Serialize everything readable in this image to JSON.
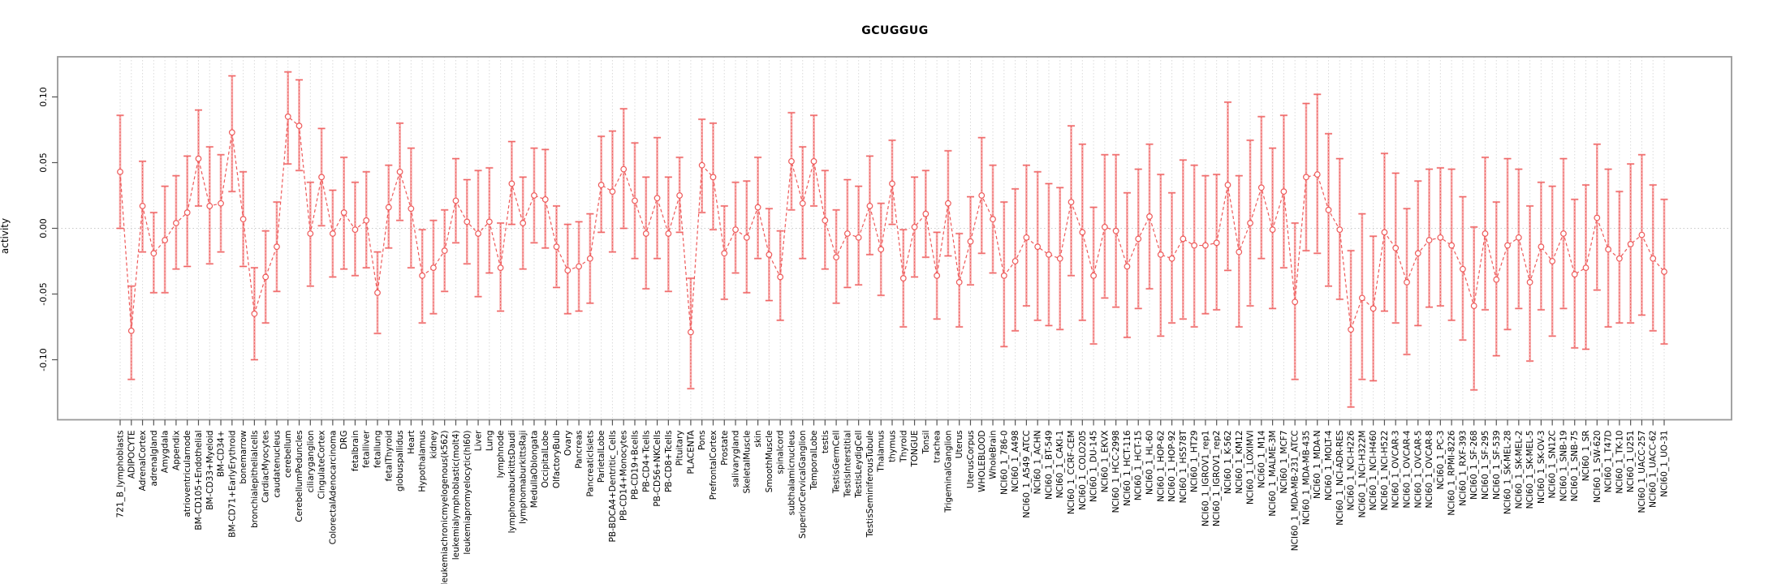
{
  "chart_data": {
    "type": "line",
    "title": "GCUGGUG",
    "ylabel": "activity",
    "xlabel": "",
    "ylim": [
      -0.143,
      0.131
    ],
    "grid": "vertical-dotted",
    "zero_line": true,
    "legend": "none",
    "marker": "open-circle",
    "line_style": "dashed",
    "error_bars": true,
    "yticks": [
      0.1,
      0.05,
      0.0,
      -0.05,
      -0.1
    ],
    "ytick_labels": [
      "0.10",
      "0.05",
      "0.00",
      "-0.05",
      "-0.10"
    ],
    "colors": {
      "series": "#ee5a5a",
      "error_bar": "#f6a9a9",
      "grid": "#dadada",
      "zero_line": "#c8c8c8",
      "box": "#999999",
      "tick": "#555555",
      "text": "#000000",
      "background": "#ffffff"
    },
    "categories": [
      "721_B_lymphoblasts",
      "ADIPOCYTE",
      "AdrenalCortex",
      "adrenalgland",
      "Amygdala",
      "Appendix",
      "atrioventricularnode",
      "BM-CD105+Endothelial",
      "BM-CD33+Myeloid",
      "BM-CD34+",
      "BM-CD71+EarlyErythroid",
      "bonemarrow",
      "bronchialepithelialcells",
      "CardiacMyocytes",
      "caudatenucleus",
      "cerebellum",
      "CerebellumPeduncles",
      "ciliaryganglion",
      "CingulateCortex",
      "ColorectalAdenocarcinoma",
      "DRG",
      "fetalbrain",
      "fetalliver",
      "fetallung",
      "fetalThyroid",
      "globuspallidus",
      "Heart",
      "Hypothalamus",
      "kidney",
      "leukemiachronicmyelogenous(k562)",
      "leukemialymphoblastic(molt4)",
      "leukemiapromyelocytic(hl60)",
      "Liver",
      "Lung",
      "lymphnode",
      "lymphomaburkittsDaudi",
      "lymphomaburkittsRaji",
      "MedullaOblongata",
      "OccipitalLobe",
      "OlfactoryBulb",
      "Ovary",
      "Pancreas",
      "PancreaticIslets",
      "ParietalLobe",
      "PB-BDCA4+Dentritic_Cells",
      "PB-CD14+Monocytes",
      "PB-CD19+Bcells",
      "PB-CD4+Tcells",
      "PB-CD56+NKCells",
      "PB-CD8+Tcells",
      "Pituitary",
      "PLACENTA",
      "Pons",
      "PrefrontalCortex",
      "Prostate",
      "salivarygland",
      "SkeletalMuscle",
      "skin",
      "SmoothMuscle",
      "spinalcord",
      "subthalamicnucleus",
      "SuperiorCervicalGanglion",
      "TemporalLobe",
      "testis",
      "TestisGermCell",
      "TestisInterstitial",
      "TestisLeydigCell",
      "TestisSeminiferousTubule",
      "Thalamus",
      "thymus",
      "Thyroid",
      "TONGUE",
      "Tonsil",
      "trachea",
      "TrigeminalGanglion",
      "Uterus",
      "UterusCorpus",
      "WHOLEBLOOD",
      "WholeBrain",
      "NCI60_1_786-0",
      "NCI60_1_A498",
      "NCI60_1_A549_ATCC",
      "NCI60_1_ACHN",
      "NCI60_1_BT-549",
      "NCI60_1_CAKI-1",
      "NCI60_1_CCRF-CEM",
      "NCI60_1_COLO205",
      "NCI60_1_DU-145",
      "NCI60_1_EKVX",
      "NCI60_1_HCC-2998",
      "NCI60_1_HCT-116",
      "NCI60_1_HCT-15",
      "NCI60_1_HL-60",
      "NCI60_1_HOP-62",
      "NCI60_1_HOP-92",
      "NCI60_1_HS578T",
      "NCI60_1_HT29",
      "NCI60_1_IGROV1_rep1",
      "NCI60_1_IGROV1_rep2",
      "NCI60_1_K-562",
      "NCI60_1_KM12",
      "NCI60_1_LOXIMVI",
      "NCI60_1_M14",
      "NCI60_1_MALME-3M",
      "NCI60_1_MCF7",
      "NCI60_1_MDA-MB-231_ATCC",
      "NCI60_1_MDA-MB-435",
      "NCI60_1_MDA-N",
      "NCI60_1_MOLT-4",
      "NCI60_1_NCI-ADR-RES",
      "NCI60_1_NCI-H226",
      "NCI60_1_NCI-H322M",
      "NCI60_1_NCI-H460",
      "NCI60_1_NCI-H522",
      "NCI60_1_OVCAR-3",
      "NCI60_1_OVCAR-4",
      "NCI60_1_OVCAR-5",
      "NCI60_1_OVCAR-8",
      "NCI60_1_PC-3",
      "NCI60_1_RPMI-8226",
      "NCI60_1_RXF-393",
      "NCI60_1_SF-268",
      "NCI60_1_SF-295",
      "NCI60_1_SF-539",
      "NCI60_1_SK-MEL-28",
      "NCI60_1_SK-MEL-2",
      "NCI60_1_SK-MEL-5",
      "NCI60_1_SK-OV-3",
      "NCI60_1_SN12C",
      "NCI60_1_SNB-19",
      "NCI60_1_SNB-75",
      "NCI60_1_SR",
      "NCI60_1_SW-620",
      "NCI60_1_T47D",
      "NCI60_1_TK-10",
      "NCI60_1_U251",
      "NCI60_1_UACC-257",
      "NCI60_1_UACC-62",
      "NCI60_1_UO-31"
    ],
    "values": [
      0.043,
      -0.078,
      0.017,
      -0.019,
      -0.009,
      0.004,
      0.012,
      0.053,
      0.017,
      0.019,
      0.073,
      0.007,
      -0.065,
      -0.037,
      -0.014,
      0.085,
      0.078,
      -0.004,
      0.039,
      -0.004,
      0.012,
      -0.001,
      0.006,
      -0.049,
      0.016,
      0.043,
      0.015,
      -0.036,
      -0.03,
      -0.017,
      0.021,
      0.005,
      -0.004,
      0.005,
      -0.03,
      0.034,
      0.004,
      0.025,
      0.022,
      -0.014,
      -0.032,
      -0.029,
      -0.023,
      0.033,
      0.028,
      0.045,
      0.021,
      -0.004,
      0.023,
      -0.004,
      0.025,
      -0.079,
      0.048,
      0.039,
      -0.019,
      -0.001,
      -0.007,
      0.016,
      -0.02,
      -0.037,
      0.051,
      0.019,
      0.051,
      0.006,
      -0.022,
      -0.004,
      -0.007,
      0.017,
      -0.016,
      0.034,
      -0.038,
      0.001,
      0.011,
      -0.036,
      0.019,
      -0.041,
      -0.01,
      0.025,
      0.007,
      -0.036,
      -0.025,
      -0.007,
      -0.014,
      -0.02,
      -0.023,
      0.02,
      -0.003,
      -0.036,
      0.001,
      -0.002,
      -0.029,
      -0.008,
      0.009,
      -0.02,
      -0.023,
      -0.008,
      -0.013,
      -0.013,
      -0.011,
      0.033,
      -0.018,
      0.004,
      0.031,
      -0.001,
      0.028,
      -0.056,
      0.039,
      0.041,
      0.014,
      -0.001,
      -0.077,
      -0.053,
      -0.061,
      -0.003,
      -0.015,
      -0.041,
      -0.019,
      -0.009,
      -0.007,
      -0.013,
      -0.031,
      -0.059,
      -0.004,
      -0.039,
      -0.013,
      -0.007,
      -0.041,
      -0.014,
      -0.025,
      -0.004,
      -0.035,
      -0.03,
      0.008,
      -0.016,
      -0.023,
      -0.012,
      -0.005,
      -0.023,
      -0.033
    ],
    "err_lo": [
      0.0,
      -0.115,
      -0.018,
      -0.049,
      -0.049,
      -0.031,
      -0.029,
      0.017,
      -0.027,
      -0.018,
      0.028,
      -0.029,
      -0.1,
      -0.072,
      -0.048,
      0.049,
      0.044,
      -0.044,
      0.002,
      -0.037,
      -0.031,
      -0.036,
      -0.03,
      -0.08,
      -0.015,
      0.006,
      -0.03,
      -0.072,
      -0.065,
      -0.048,
      -0.011,
      -0.027,
      -0.052,
      -0.034,
      -0.063,
      0.003,
      -0.031,
      -0.011,
      -0.015,
      -0.045,
      -0.065,
      -0.063,
      -0.057,
      -0.003,
      -0.018,
      0.0,
      -0.023,
      -0.046,
      -0.023,
      -0.048,
      -0.003,
      -0.122,
      0.012,
      -0.001,
      -0.054,
      -0.034,
      -0.049,
      -0.023,
      -0.055,
      -0.07,
      0.014,
      -0.023,
      0.017,
      -0.031,
      -0.057,
      -0.045,
      -0.043,
      -0.02,
      -0.051,
      0.003,
      -0.075,
      -0.037,
      -0.022,
      -0.069,
      -0.021,
      -0.075,
      -0.043,
      -0.019,
      -0.034,
      -0.09,
      -0.078,
      -0.059,
      -0.07,
      -0.074,
      -0.077,
      -0.036,
      -0.07,
      -0.088,
      -0.053,
      -0.06,
      -0.083,
      -0.061,
      -0.046,
      -0.082,
      -0.072,
      -0.069,
      -0.075,
      -0.065,
      -0.062,
      -0.032,
      -0.075,
      -0.059,
      -0.023,
      -0.061,
      -0.03,
      -0.115,
      -0.017,
      -0.019,
      -0.044,
      -0.054,
      -0.136,
      -0.115,
      -0.116,
      -0.063,
      -0.072,
      -0.096,
      -0.074,
      -0.06,
      -0.059,
      -0.07,
      -0.085,
      -0.123,
      -0.062,
      -0.097,
      -0.077,
      -0.061,
      -0.101,
      -0.062,
      -0.082,
      -0.061,
      -0.091,
      -0.092,
      -0.047,
      -0.075,
      -0.072,
      -0.072,
      -0.066,
      -0.078,
      -0.088
    ],
    "err_hi": [
      0.086,
      -0.044,
      0.051,
      0.012,
      0.032,
      0.04,
      0.055,
      0.09,
      0.062,
      0.056,
      0.116,
      0.043,
      -0.03,
      -0.002,
      0.02,
      0.119,
      0.113,
      0.035,
      0.076,
      0.029,
      0.054,
      0.035,
      0.043,
      -0.018,
      0.048,
      0.08,
      0.061,
      -0.001,
      0.006,
      0.014,
      0.053,
      0.037,
      0.044,
      0.046,
      0.004,
      0.066,
      0.039,
      0.061,
      0.06,
      0.017,
      0.003,
      0.005,
      0.011,
      0.07,
      0.074,
      0.091,
      0.065,
      0.039,
      0.069,
      0.039,
      0.054,
      -0.038,
      0.083,
      0.08,
      0.017,
      0.035,
      0.036,
      0.054,
      0.015,
      -0.002,
      0.088,
      0.062,
      0.086,
      0.044,
      0.014,
      0.037,
      0.032,
      0.055,
      0.019,
      0.067,
      -0.001,
      0.039,
      0.044,
      -0.003,
      0.059,
      -0.004,
      0.024,
      0.069,
      0.048,
      0.02,
      0.03,
      0.048,
      0.043,
      0.034,
      0.031,
      0.078,
      0.064,
      0.016,
      0.056,
      0.056,
      0.027,
      0.045,
      0.064,
      0.041,
      0.027,
      0.052,
      0.048,
      0.04,
      0.041,
      0.096,
      0.04,
      0.067,
      0.085,
      0.061,
      0.086,
      0.004,
      0.095,
      0.102,
      0.072,
      0.053,
      -0.017,
      0.011,
      -0.006,
      0.057,
      0.042,
      0.015,
      0.036,
      0.045,
      0.046,
      0.045,
      0.024,
      0.001,
      0.054,
      0.02,
      0.053,
      0.045,
      0.017,
      0.035,
      0.032,
      0.053,
      0.022,
      0.033,
      0.064,
      0.045,
      0.028,
      0.049,
      0.056,
      0.033,
      0.022
    ]
  }
}
